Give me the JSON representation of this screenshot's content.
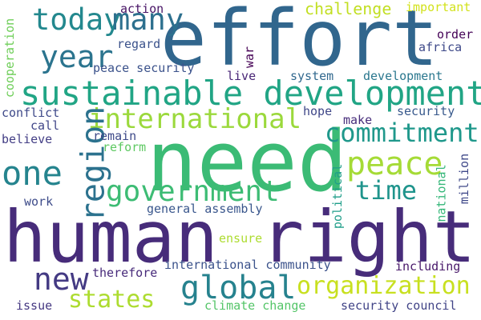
{
  "words": {
    "effort": {
      "text": "effort",
      "color": "#31668d"
    },
    "need": {
      "text": "need",
      "color": "#3bbb75"
    },
    "human_right": {
      "text": "human right",
      "color": "#472c7a"
    },
    "sustainable_development": {
      "text": "sustainable development",
      "color": "#21a585"
    },
    "region": {
      "text": "region",
      "color": "#2c728e"
    },
    "international": {
      "text": "international",
      "color": "#9bd93c"
    },
    "government": {
      "text": "government",
      "color": "#3dbc74"
    },
    "global": {
      "text": "global",
      "color": "#26828e"
    },
    "one": {
      "text": "one",
      "color": "#25848e"
    },
    "many": {
      "text": "many",
      "color": "#2d708e"
    },
    "today": {
      "text": "today",
      "color": "#23888e"
    },
    "year": {
      "text": "year",
      "color": "#2b748e"
    },
    "commitment": {
      "text": "commitment",
      "color": "#1f988b"
    },
    "peace": {
      "text": "peace",
      "color": "#a5db36"
    },
    "time": {
      "text": "time",
      "color": "#1f948c"
    },
    "new": {
      "text": "new",
      "color": "#443a83"
    },
    "organization": {
      "text": "organization",
      "color": "#c8e020"
    },
    "states": {
      "text": "states",
      "color": "#addc30"
    },
    "challenge": {
      "text": "challenge",
      "color": "#c2df23"
    },
    "important": {
      "text": "important",
      "color": "#d2e21b"
    },
    "action": {
      "text": "action",
      "color": "#471365"
    },
    "regard": {
      "text": "regard",
      "color": "#3b528b"
    },
    "war": {
      "text": "war",
      "color": "#440154"
    },
    "order": {
      "text": "order",
      "color": "#440256"
    },
    "africa": {
      "text": "africa",
      "color": "#3e4989"
    },
    "peace_security": {
      "text": "peace security",
      "color": "#3b528b"
    },
    "live": {
      "text": "live",
      "color": "#482576"
    },
    "system": {
      "text": "system",
      "color": "#31688e"
    },
    "development": {
      "text": "development",
      "color": "#2a778e"
    },
    "cooperation": {
      "text": "cooperation",
      "color": "#6ece58"
    },
    "conflict": {
      "text": "conflict",
      "color": "#3e4989"
    },
    "call": {
      "text": "call",
      "color": "#404688"
    },
    "believe": {
      "text": "believe",
      "color": "#433e85"
    },
    "remain": {
      "text": "remain",
      "color": "#3e4a89"
    },
    "reform": {
      "text": "reform",
      "color": "#5ec962"
    },
    "hope": {
      "text": "hope",
      "color": "#3f4788"
    },
    "make": {
      "text": "make",
      "color": "#472d7b"
    },
    "security": {
      "text": "security",
      "color": "#38598c"
    },
    "work": {
      "text": "work",
      "color": "#3e4c8a"
    },
    "general_assembly": {
      "text": "general assembly",
      "color": "#39568c"
    },
    "national": {
      "text": "national",
      "color": "#35b779"
    },
    "political": {
      "text": "political",
      "color": "#1f9e89"
    },
    "million": {
      "text": "million",
      "color": "#3f4889"
    },
    "ensure": {
      "text": "ensure",
      "color": "#addc30"
    },
    "international_community": {
      "text": "international community",
      "color": "#3b528b"
    },
    "including": {
      "text": "including",
      "color": "#48186a"
    },
    "therefore": {
      "text": "therefore",
      "color": "#472a7a"
    },
    "climate_change": {
      "text": "climate change",
      "color": "#54c568"
    },
    "issue": {
      "text": "issue",
      "color": "#453882"
    },
    "security_council": {
      "text": "security council",
      "color": "#414487"
    }
  }
}
